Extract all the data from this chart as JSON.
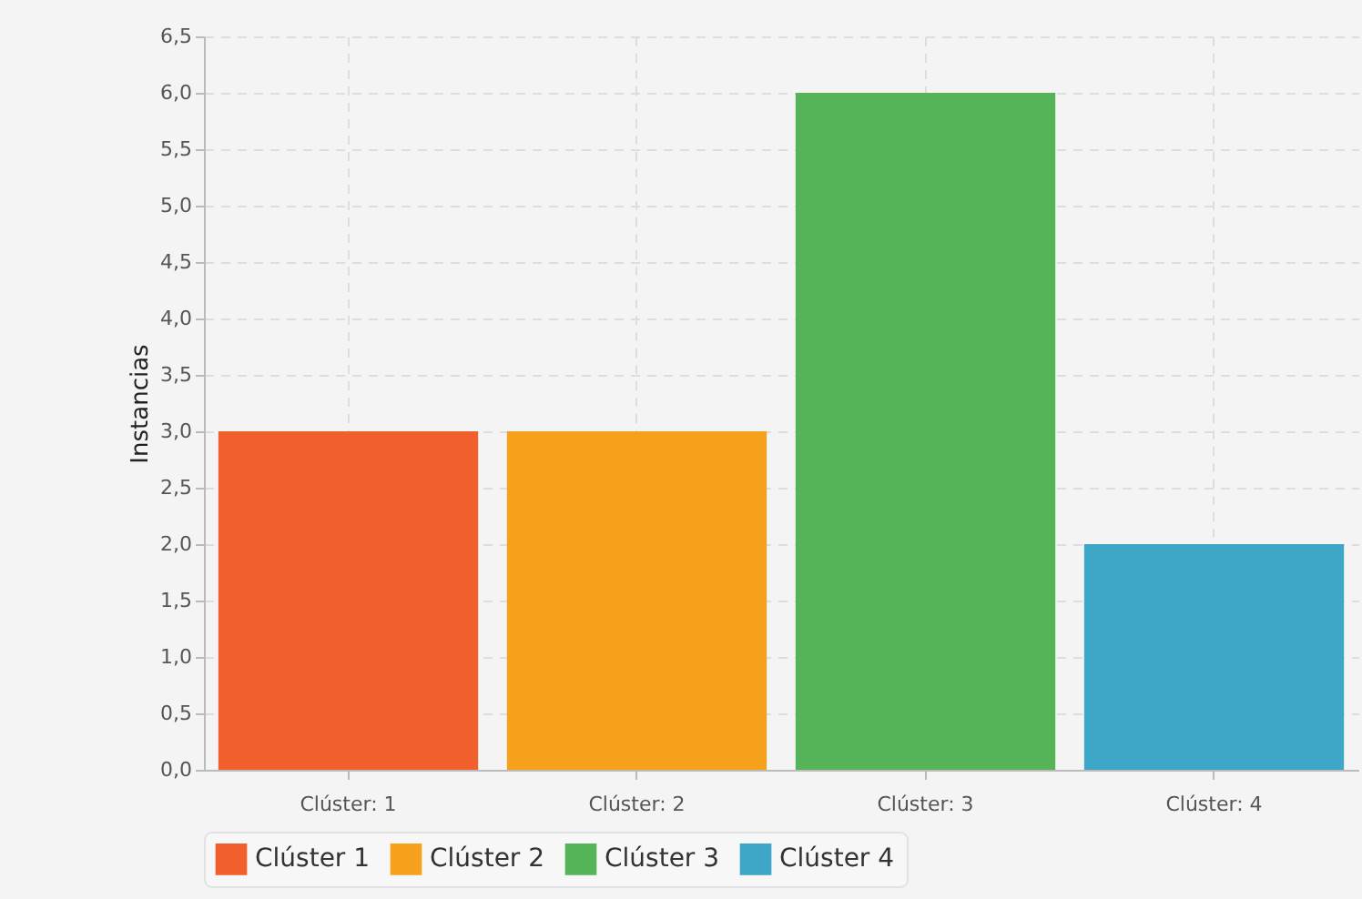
{
  "chart_data": {
    "type": "bar",
    "ylabel": "Instancias",
    "categories": [
      "Clúster: 1",
      "Clúster: 2",
      "Clúster: 3",
      "Clúster: 4"
    ],
    "series": [
      {
        "name": "Clúster 1",
        "color": "#f05f2c",
        "values": [
          3,
          null,
          null,
          null
        ]
      },
      {
        "name": "Clúster 2",
        "color": "#f6a11c",
        "values": [
          null,
          3,
          null,
          null
        ]
      },
      {
        "name": "Clúster 3",
        "color": "#55b458",
        "values": [
          null,
          null,
          6,
          null
        ]
      },
      {
        "name": "Clúster 4",
        "color": "#3ea6c7",
        "values": [
          null,
          null,
          null,
          2
        ]
      }
    ],
    "ylim": [
      0,
      6.5
    ],
    "yticks": [
      {
        "value": 0,
        "label": "0,0"
      },
      {
        "value": 0.5,
        "label": "0,5"
      },
      {
        "value": 1,
        "label": "1,0"
      },
      {
        "value": 1.5,
        "label": "1,5"
      },
      {
        "value": 2,
        "label": "2,0"
      },
      {
        "value": 2.5,
        "label": "2,5"
      },
      {
        "value": 3,
        "label": "3,0"
      },
      {
        "value": 3.5,
        "label": "3,5"
      },
      {
        "value": 4,
        "label": "4,0"
      },
      {
        "value": 4.5,
        "label": "4,5"
      },
      {
        "value": 5,
        "label": "5,0"
      },
      {
        "value": 5.5,
        "label": "5,5"
      },
      {
        "value": 6,
        "label": "6,0"
      },
      {
        "value": 6.5,
        "label": "6,5"
      }
    ],
    "grid": true,
    "legend": "bottom"
  }
}
